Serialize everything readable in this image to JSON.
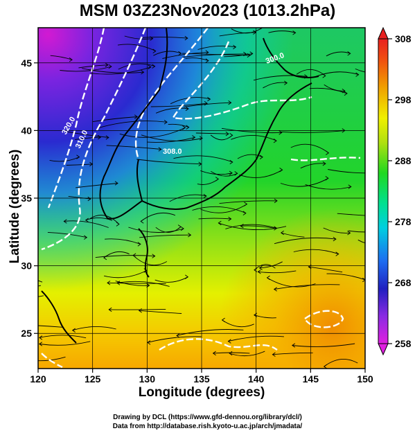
{
  "title": "MSM 03Z23Nov2023 (1013.2hPa)",
  "credits": [
    "Drawing by DCL (https://www.gfd-dennou.org/library/dcl/)",
    "Data from http://database.rish.kyoto-u.ac.jp/arch/jmadata/"
  ],
  "chart_data": {
    "type": "heatmap",
    "title": "MSM 03Z23Nov2023 (1013.2hPa)",
    "xlabel": "Longitude (degrees)",
    "ylabel": "Latitude  (degrees)",
    "xlim": [
      120,
      150
    ],
    "ylim": [
      22.4,
      47.6
    ],
    "x_ticks": [
      120,
      125,
      130,
      135,
      140,
      145,
      150
    ],
    "y_ticks": [
      25,
      30,
      35,
      40,
      45
    ],
    "grid": true,
    "overlays": [
      "streamlines",
      "white contour lines",
      "coastlines"
    ],
    "colorbar": {
      "min": 258,
      "max": 308,
      "ticks": [
        258,
        268,
        278,
        288,
        298,
        308
      ],
      "colors": [
        "#e020e0",
        "#8a2be2",
        "#2020c0",
        "#1e6cf0",
        "#00cfe0",
        "#00e090",
        "#20d820",
        "#b0e010",
        "#f0f000",
        "#f0a000",
        "#f05010",
        "#e82020"
      ]
    },
    "contour_labels": [
      "320.0",
      "310.0",
      "308.0",
      "300.0"
    ]
  }
}
